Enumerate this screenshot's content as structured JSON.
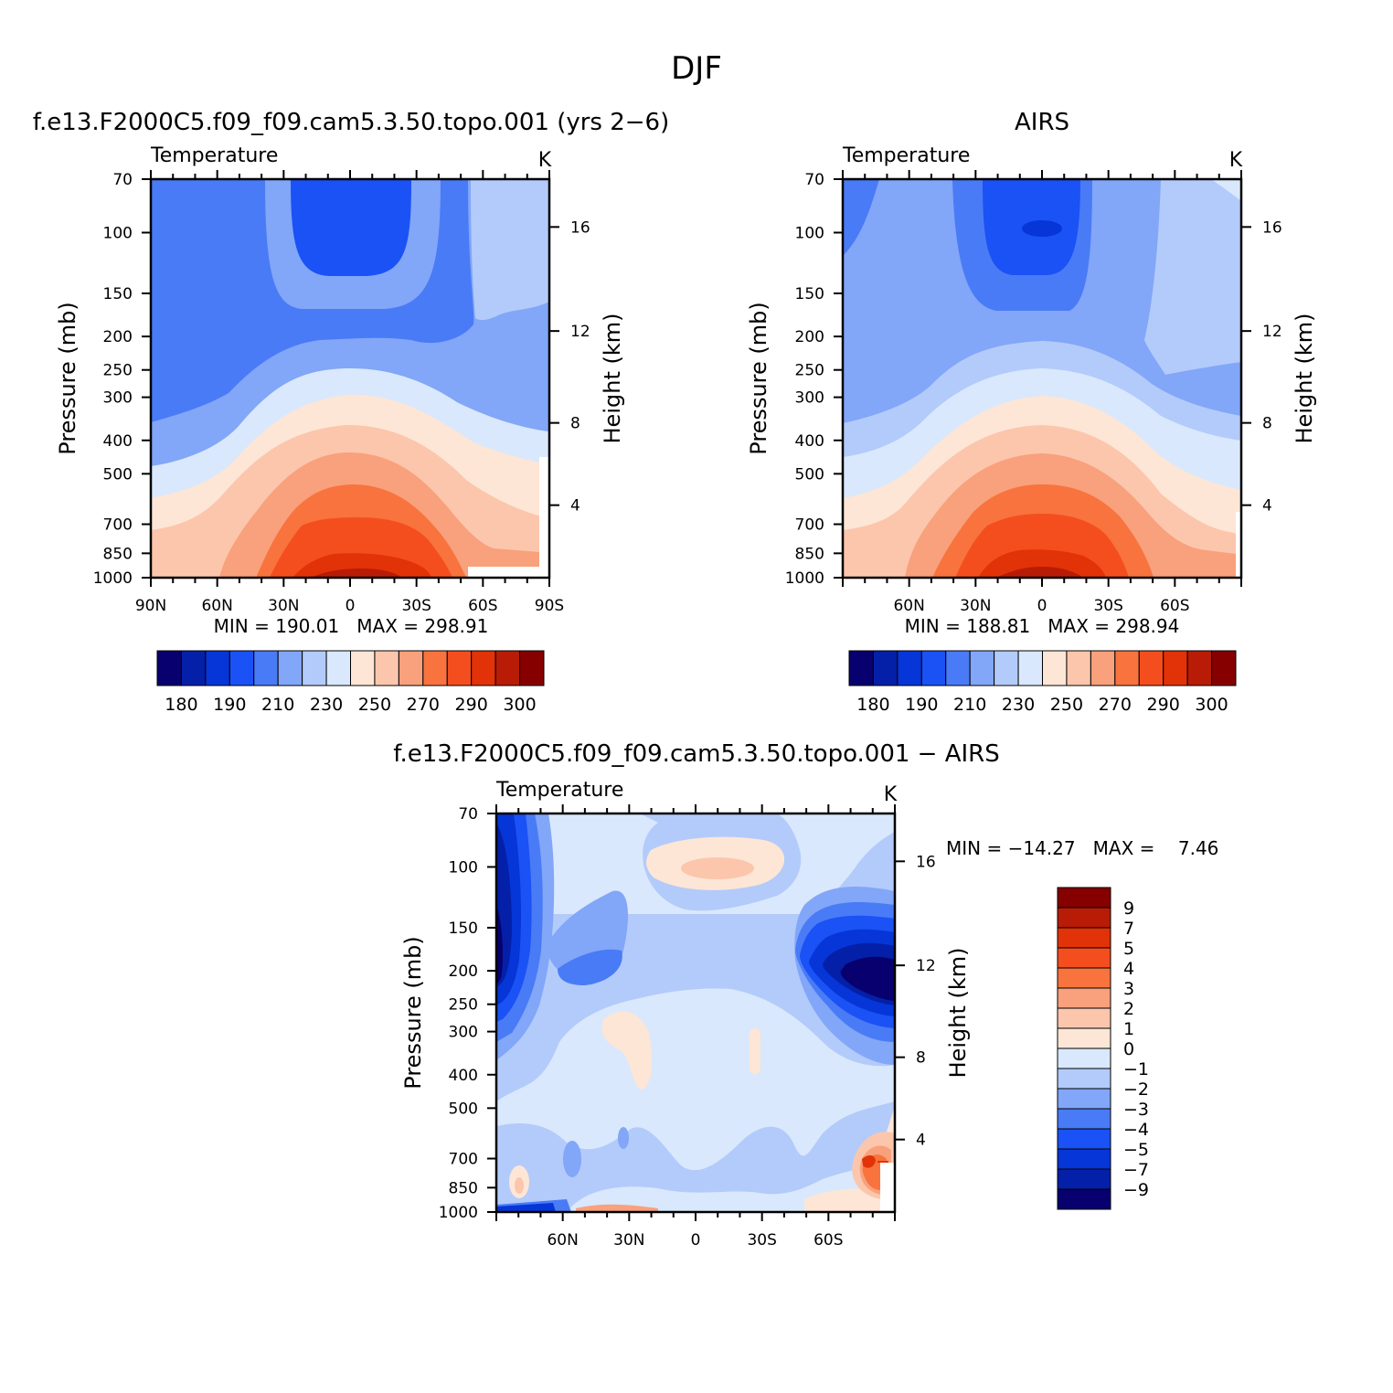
{
  "figure": {
    "title": "DJF"
  },
  "colors": {
    "temp_levels": [
      "#08006e",
      "#0420a8",
      "#0636d8",
      "#1a52f5",
      "#4a7bf6",
      "#82a6f8",
      "#b3cbfa",
      "#d9e8fc",
      "#fde6d6",
      "#fcc6ac",
      "#f9a07c",
      "#f8733e",
      "#f54e1e",
      "#e23208",
      "#b81c06",
      "#860000"
    ],
    "diff_levels": [
      "#08006e",
      "#0420a8",
      "#0636d8",
      "#1a52f5",
      "#4a7bf6",
      "#82a6f8",
      "#b3cbfa",
      "#d9e8fc",
      "#fde6d6",
      "#fcc6ac",
      "#f9a07c",
      "#f8733e",
      "#f54e1e",
      "#e23208",
      "#b81c06",
      "#860000"
    ]
  },
  "chart_data": [
    {
      "type": "heatmap",
      "title": "f.e13.F2000C5.f09_f09.cam5.3.50.topo.001 (yrs 2−6)",
      "subtitle": "Temperature",
      "units": "K",
      "ylabel": "Pressure (mb)",
      "ylabel_right": "Height (km)",
      "y_ticks": [
        "70",
        "100",
        "150",
        "200",
        "250",
        "300",
        "400",
        "500",
        "700",
        "850",
        "1000"
      ],
      "y_tick_values": [
        70,
        100,
        150,
        200,
        250,
        300,
        400,
        500,
        700,
        850,
        1000
      ],
      "y_right_ticks": [
        "4",
        "8",
        "12",
        "16"
      ],
      "x_ticks": [
        "90N",
        "60N",
        "30N",
        "0",
        "30S",
        "60S",
        "90S"
      ],
      "x_tick_values": [
        90,
        60,
        30,
        0,
        -30,
        -60,
        -90
      ],
      "xlim": [
        90,
        -90
      ],
      "ylim": [
        1000,
        70
      ],
      "log_y": true,
      "min_max": "MIN = 190.01   MAX = 298.91",
      "colorbar_labels": [
        "180",
        "190",
        "210",
        "230",
        "250",
        "270",
        "290",
        "300"
      ]
    },
    {
      "type": "heatmap",
      "title": "AIRS",
      "subtitle": "Temperature",
      "units": "K",
      "ylabel": "Pressure (mb)",
      "ylabel_right": "Height (km)",
      "y_ticks": [
        "70",
        "100",
        "150",
        "200",
        "250",
        "300",
        "400",
        "500",
        "700",
        "850",
        "1000"
      ],
      "y_tick_values": [
        70,
        100,
        150,
        200,
        250,
        300,
        400,
        500,
        700,
        850,
        1000
      ],
      "y_right_ticks": [
        "4",
        "8",
        "12",
        "16"
      ],
      "x_ticks": [
        "60N",
        "30N",
        "0",
        "30S",
        "60S"
      ],
      "x_tick_values": [
        60,
        30,
        0,
        -30,
        -60
      ],
      "xlim": [
        90,
        -90
      ],
      "ylim": [
        1000,
        70
      ],
      "log_y": true,
      "min_max": "MIN = 188.81   MAX = 298.94",
      "colorbar_labels": [
        "180",
        "190",
        "210",
        "230",
        "250",
        "270",
        "290",
        "300"
      ]
    },
    {
      "type": "heatmap",
      "title": "f.e13.F2000C5.f09_f09.cam5.3.50.topo.001 − AIRS",
      "subtitle": "Temperature",
      "units": "K",
      "ylabel": "Pressure (mb)",
      "ylabel_right": "Height (km)",
      "y_ticks": [
        "70",
        "100",
        "150",
        "200",
        "250",
        "300",
        "400",
        "500",
        "700",
        "850",
        "1000"
      ],
      "y_tick_values": [
        70,
        100,
        150,
        200,
        250,
        300,
        400,
        500,
        700,
        850,
        1000
      ],
      "y_right_ticks": [
        "4",
        "8",
        "12",
        "16"
      ],
      "x_ticks": [
        "60N",
        "30N",
        "0",
        "30S",
        "60S"
      ],
      "x_tick_values": [
        60,
        30,
        0,
        -30,
        -60
      ],
      "xlim": [
        90,
        -90
      ],
      "ylim": [
        1000,
        70
      ],
      "log_y": true,
      "min_max": "MIN = −14.27   MAX =    7.46",
      "colorbar_labels": [
        "9",
        "7",
        "5",
        "4",
        "3",
        "2",
        "1",
        "0",
        "−1",
        "−2",
        "−3",
        "−4",
        "−5",
        "−7",
        "−9"
      ]
    }
  ]
}
